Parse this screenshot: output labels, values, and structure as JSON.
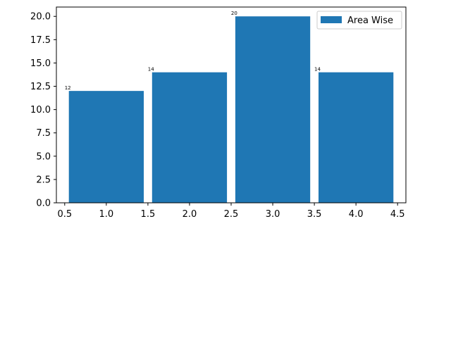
{
  "chart_data": {
    "type": "bar",
    "x": [
      1,
      2,
      3,
      4
    ],
    "values": [
      12,
      14,
      20,
      14
    ],
    "data_labels": [
      "12",
      "14",
      "20",
      "14"
    ],
    "series": [
      {
        "name": "Area Wise",
        "values": [
          12,
          14,
          20,
          14
        ]
      }
    ],
    "xlim": [
      0.4,
      4.6
    ],
    "ylim": [
      0,
      21
    ],
    "x_ticks": [
      0.5,
      1.0,
      1.5,
      2.0,
      2.5,
      3.0,
      3.5,
      4.0,
      4.5
    ],
    "x_tick_labels": [
      "0.5",
      "1.0",
      "1.5",
      "2.0",
      "2.5",
      "3.0",
      "3.5",
      "4.0",
      "4.5"
    ],
    "y_ticks": [
      0,
      2.5,
      5,
      7.5,
      10,
      12.5,
      15,
      17.5,
      20
    ],
    "y_tick_labels": [
      "0.0",
      "2.5",
      "5.0",
      "7.5",
      "10.0",
      "12.5",
      "15.0",
      "17.5",
      "20.0"
    ],
    "bar_width": 0.9,
    "grid": false,
    "legend_position": "top-right",
    "colors": {
      "bar": "#1f77b4",
      "axis": "#000000",
      "legend_border": "#cccccc"
    }
  }
}
